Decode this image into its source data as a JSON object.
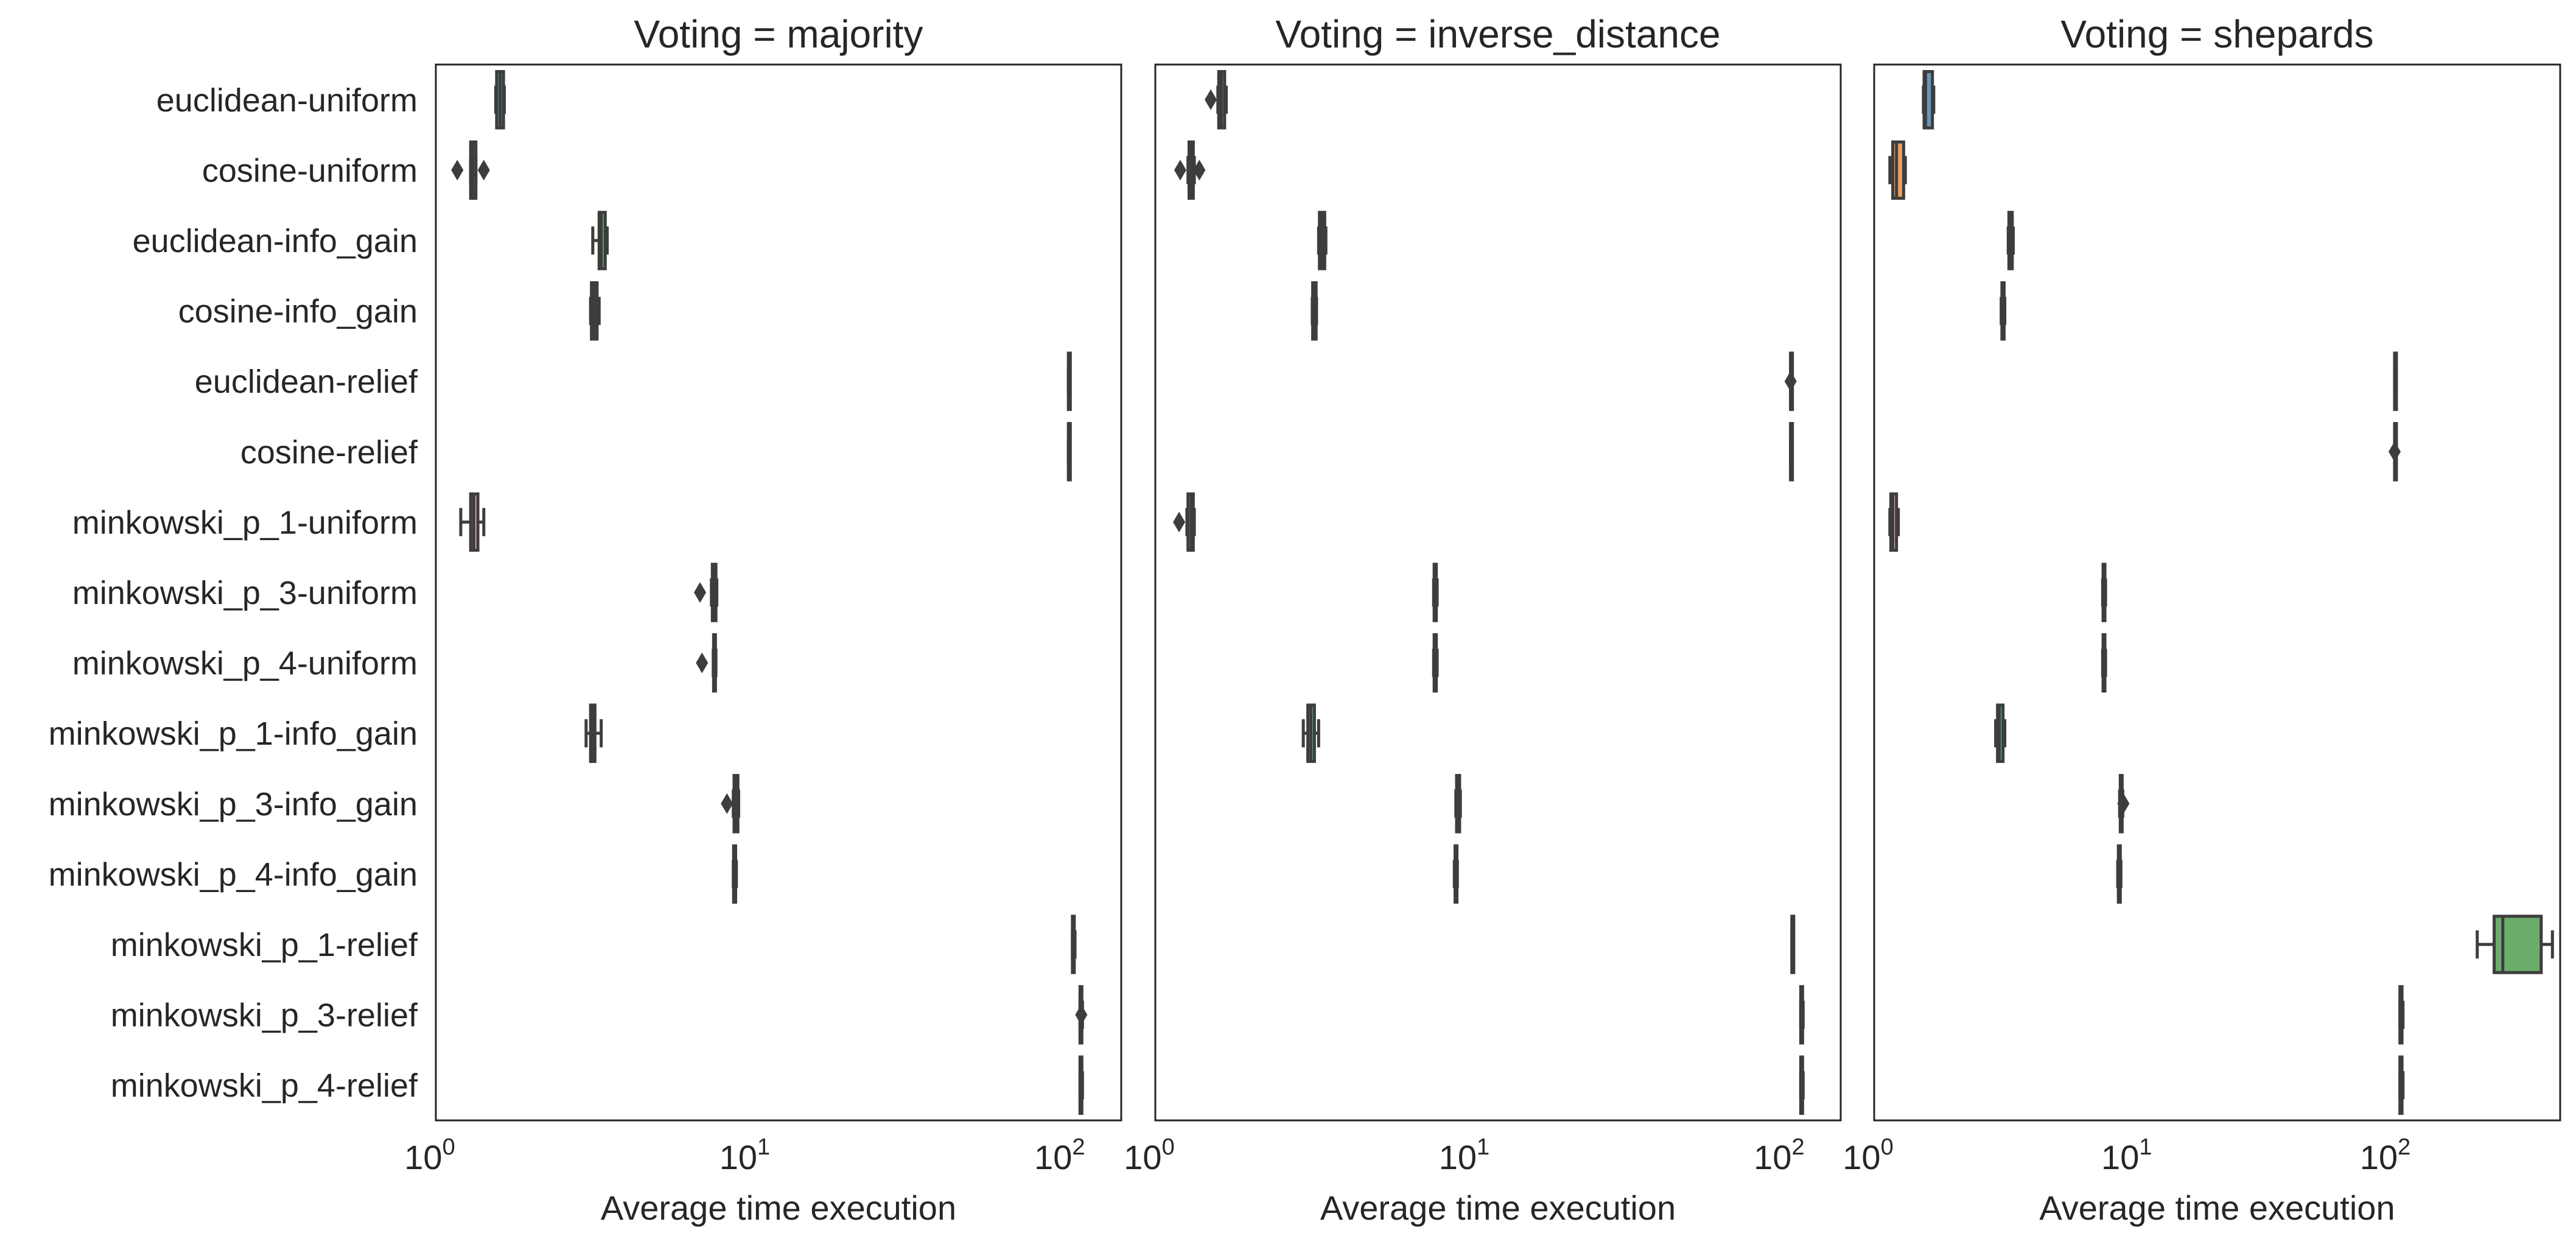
{
  "chart_data": [
    {
      "type": "boxplot",
      "title": "Voting = majority",
      "xlabel": "Average time execution",
      "ylabel": "",
      "xscale": "log",
      "xlim": [
        1,
        150
      ],
      "xticks": [
        {
          "base": "10",
          "exp": "0",
          "value": 1
        },
        {
          "base": "10",
          "exp": "1",
          "value": 10
        },
        {
          "base": "10",
          "exp": "2",
          "value": 100
        }
      ],
      "categories": [
        "euclidean-uniform",
        "cosine-uniform",
        "euclidean-info_gain",
        "cosine-info_gain",
        "euclidean-relief",
        "cosine-relief",
        "minkowski_p_1-uniform",
        "minkowski_p_3-uniform",
        "minkowski_p_4-uniform",
        "minkowski_p_1-info_gain",
        "minkowski_p_3-info_gain",
        "minkowski_p_4-info_gain",
        "minkowski_p_1-relief",
        "minkowski_p_3-relief",
        "minkowski_p_4-relief"
      ],
      "boxes": [
        {
          "whislo": 1.55,
          "q1": 1.56,
          "med": 1.6,
          "q3": 1.64,
          "whishi": 1.65,
          "fliers": []
        },
        {
          "whislo": 1.29,
          "q1": 1.29,
          "med": 1.31,
          "q3": 1.34,
          "whishi": 1.34,
          "fliers": [
            1.17,
            1.42
          ]
        },
        {
          "whislo": 3.15,
          "q1": 3.3,
          "med": 3.35,
          "q3": 3.45,
          "whishi": 3.5,
          "fliers": []
        },
        {
          "whislo": 3.1,
          "q1": 3.12,
          "med": 3.18,
          "q3": 3.25,
          "whishi": 3.3,
          "fliers": []
        },
        {
          "whislo": 102,
          "q1": 102,
          "med": 102,
          "q3": 102,
          "whishi": 102,
          "fliers": []
        },
        {
          "whislo": 102,
          "q1": 102,
          "med": 102,
          "q3": 102,
          "whishi": 102,
          "fliers": []
        },
        {
          "whislo": 1.2,
          "q1": 1.29,
          "med": 1.32,
          "q3": 1.36,
          "whishi": 1.42,
          "fliers": []
        },
        {
          "whislo": 7.5,
          "q1": 7.55,
          "med": 7.65,
          "q3": 7.75,
          "whishi": 7.8,
          "fliers": [
            6.9
          ]
        },
        {
          "whislo": 7.6,
          "q1": 7.62,
          "med": 7.68,
          "q3": 7.72,
          "whishi": 7.75,
          "fliers": [
            7.0
          ]
        },
        {
          "whislo": 3.0,
          "q1": 3.1,
          "med": 3.15,
          "q3": 3.2,
          "whishi": 3.35,
          "fliers": []
        },
        {
          "whislo": 8.8,
          "q1": 8.85,
          "med": 9.0,
          "q3": 9.1,
          "whishi": 9.15,
          "fliers": [
            8.4
          ]
        },
        {
          "whislo": 8.8,
          "q1": 8.82,
          "med": 8.9,
          "q3": 8.95,
          "whishi": 9.0,
          "fliers": []
        },
        {
          "whislo": 105,
          "q1": 105,
          "med": 106,
          "q3": 106,
          "whishi": 107,
          "fliers": []
        },
        {
          "whislo": 111,
          "q1": 111,
          "med": 112,
          "q3": 112,
          "whishi": 113,
          "fliers": [
            112
          ]
        },
        {
          "whislo": 111,
          "q1": 111,
          "med": 112,
          "q3": 112,
          "whishi": 113,
          "fliers": []
        }
      ],
      "colors": [
        "#3274a1",
        "#e1812c",
        "#3a923a",
        "#c03d3e",
        "#9372b2",
        "#845b53",
        "#d684bd",
        "#7f7f7f",
        "#a9aa35",
        "#2ebdbe",
        "#3274a1",
        "#e1812c",
        "#3a923a",
        "#c03d3e",
        "#9372b2"
      ],
      "grid": false,
      "legend": "none"
    },
    {
      "type": "boxplot",
      "title": "Voting = inverse_distance",
      "xlabel": "Average time execution",
      "ylabel": "",
      "xscale": "log",
      "xlim": [
        1,
        150
      ],
      "xticks": [
        {
          "base": "10",
          "exp": "0",
          "value": 1
        },
        {
          "base": "10",
          "exp": "1",
          "value": 10
        },
        {
          "base": "10",
          "exp": "2",
          "value": 100
        }
      ],
      "categories": [
        "euclidean-uniform",
        "cosine-uniform",
        "euclidean-info_gain",
        "cosine-info_gain",
        "euclidean-relief",
        "cosine-relief",
        "minkowski_p_1-uniform",
        "minkowski_p_3-uniform",
        "minkowski_p_4-uniform",
        "minkowski_p_1-info_gain",
        "minkowski_p_3-info_gain",
        "minkowski_p_4-info_gain",
        "minkowski_p_1-relief",
        "minkowski_p_3-relief",
        "minkowski_p_4-relief"
      ],
      "boxes": [
        {
          "whislo": 1.58,
          "q1": 1.59,
          "med": 1.62,
          "q3": 1.66,
          "whishi": 1.68,
          "fliers": [
            1.5
          ]
        },
        {
          "whislo": 1.27,
          "q1": 1.28,
          "med": 1.3,
          "q3": 1.32,
          "whishi": 1.33,
          "fliers": [
            1.2,
            1.38
          ]
        },
        {
          "whislo": 3.3,
          "q1": 3.32,
          "med": 3.38,
          "q3": 3.45,
          "whishi": 3.48,
          "fliers": []
        },
        {
          "whislo": 3.15,
          "q1": 3.16,
          "med": 3.2,
          "q3": 3.24,
          "whishi": 3.25,
          "fliers": []
        },
        {
          "whislo": 104,
          "q1": 104,
          "med": 104,
          "q3": 104,
          "whishi": 104,
          "fliers": [
            104
          ]
        },
        {
          "whislo": 104,
          "q1": 104,
          "med": 104,
          "q3": 104,
          "whishi": 104,
          "fliers": []
        },
        {
          "whislo": 1.26,
          "q1": 1.27,
          "med": 1.3,
          "q3": 1.32,
          "whishi": 1.33,
          "fliers": [
            1.19
          ]
        },
        {
          "whislo": 7.65,
          "q1": 7.68,
          "med": 7.75,
          "q3": 7.8,
          "whishi": 7.85,
          "fliers": []
        },
        {
          "whislo": 7.65,
          "q1": 7.68,
          "med": 7.75,
          "q3": 7.8,
          "whishi": 7.85,
          "fliers": []
        },
        {
          "whislo": 2.95,
          "q1": 3.05,
          "med": 3.12,
          "q3": 3.2,
          "whishi": 3.3,
          "fliers": []
        },
        {
          "whislo": 9.0,
          "q1": 9.05,
          "med": 9.15,
          "q3": 9.25,
          "whishi": 9.3,
          "fliers": []
        },
        {
          "whislo": 8.9,
          "q1": 8.95,
          "med": 9.0,
          "q3": 9.05,
          "whishi": 9.1,
          "fliers": []
        },
        {
          "whislo": 105,
          "q1": 105,
          "med": 105,
          "q3": 106,
          "whishi": 106,
          "fliers": []
        },
        {
          "whislo": 112,
          "q1": 112,
          "med": 113,
          "q3": 113,
          "whishi": 114,
          "fliers": []
        },
        {
          "whislo": 112,
          "q1": 112,
          "med": 113,
          "q3": 113,
          "whishi": 114,
          "fliers": []
        }
      ],
      "colors": [
        "#3274a1",
        "#e1812c",
        "#3a923a",
        "#c03d3e",
        "#9372b2",
        "#845b53",
        "#d684bd",
        "#7f7f7f",
        "#a9aa35",
        "#2ebdbe",
        "#3274a1",
        "#e1812c",
        "#3a923a",
        "#c03d3e",
        "#9372b2"
      ],
      "grid": false,
      "legend": "none"
    },
    {
      "type": "boxplot",
      "title": "Voting = shepards",
      "xlabel": "Average time execution",
      "ylabel": "",
      "xscale": "log",
      "xlim": [
        1,
        450
      ],
      "xticks": [
        {
          "base": "10",
          "exp": "0",
          "value": 1
        },
        {
          "base": "10",
          "exp": "1",
          "value": 10
        },
        {
          "base": "10",
          "exp": "2",
          "value": 100
        }
      ],
      "categories": [
        "euclidean-uniform",
        "cosine-uniform",
        "euclidean-info_gain",
        "cosine-info_gain",
        "euclidean-relief",
        "cosine-relief",
        "minkowski_p_1-uniform",
        "minkowski_p_3-uniform",
        "minkowski_p_4-uniform",
        "minkowski_p_1-info_gain",
        "minkowski_p_3-info_gain",
        "minkowski_p_4-info_gain",
        "minkowski_p_1-relief",
        "minkowski_p_3-relief",
        "minkowski_p_4-relief"
      ],
      "boxes": [
        {
          "whislo": 1.55,
          "q1": 1.56,
          "med": 1.58,
          "q3": 1.68,
          "whishi": 1.7,
          "fliers": []
        },
        {
          "whislo": 1.15,
          "q1": 1.18,
          "med": 1.22,
          "q3": 1.3,
          "whishi": 1.32,
          "fliers": []
        },
        {
          "whislo": 3.3,
          "q1": 3.32,
          "med": 3.38,
          "q3": 3.42,
          "whishi": 3.45,
          "fliers": []
        },
        {
          "whislo": 3.1,
          "q1": 3.12,
          "med": 3.15,
          "q3": 3.18,
          "whishi": 3.2,
          "fliers": []
        },
        {
          "whislo": 103,
          "q1": 103,
          "med": 103,
          "q3": 103,
          "whishi": 103,
          "fliers": []
        },
        {
          "whislo": 103,
          "q1": 103,
          "med": 103,
          "q3": 103,
          "whishi": 103,
          "fliers": [
            103
          ]
        },
        {
          "whislo": 1.15,
          "q1": 1.16,
          "med": 1.18,
          "q3": 1.22,
          "whishi": 1.24,
          "fliers": []
        },
        {
          "whislo": 7.65,
          "q1": 7.68,
          "med": 7.75,
          "q3": 7.8,
          "whishi": 7.85,
          "fliers": []
        },
        {
          "whislo": 7.65,
          "q1": 7.68,
          "med": 7.75,
          "q3": 7.8,
          "whishi": 7.85,
          "fliers": []
        },
        {
          "whislo": 2.95,
          "q1": 3.0,
          "med": 3.05,
          "q3": 3.15,
          "whishi": 3.2,
          "fliers": []
        },
        {
          "whislo": 8.9,
          "q1": 8.95,
          "med": 9.05,
          "q3": 9.1,
          "whishi": 9.15,
          "fliers": [
            9.2
          ]
        },
        {
          "whislo": 8.75,
          "q1": 8.8,
          "med": 8.85,
          "q3": 8.95,
          "whishi": 9.0,
          "fliers": []
        },
        {
          "whislo": 215,
          "q1": 250,
          "med": 270,
          "q3": 380,
          "whishi": 420,
          "fliers": []
        },
        {
          "whislo": 108,
          "q1": 108,
          "med": 109,
          "q3": 110,
          "whishi": 111,
          "fliers": []
        },
        {
          "whislo": 108,
          "q1": 108,
          "med": 109,
          "q3": 110,
          "whishi": 111,
          "fliers": []
        }
      ],
      "colors": [
        "#3274a1",
        "#e1812c",
        "#3a923a",
        "#c03d3e",
        "#9372b2",
        "#845b53",
        "#d684bd",
        "#7f7f7f",
        "#a9aa35",
        "#2ebdbe",
        "#3274a1",
        "#e1812c",
        "#3a923a",
        "#c03d3e",
        "#9372b2"
      ],
      "grid": false,
      "legend": "none"
    }
  ]
}
